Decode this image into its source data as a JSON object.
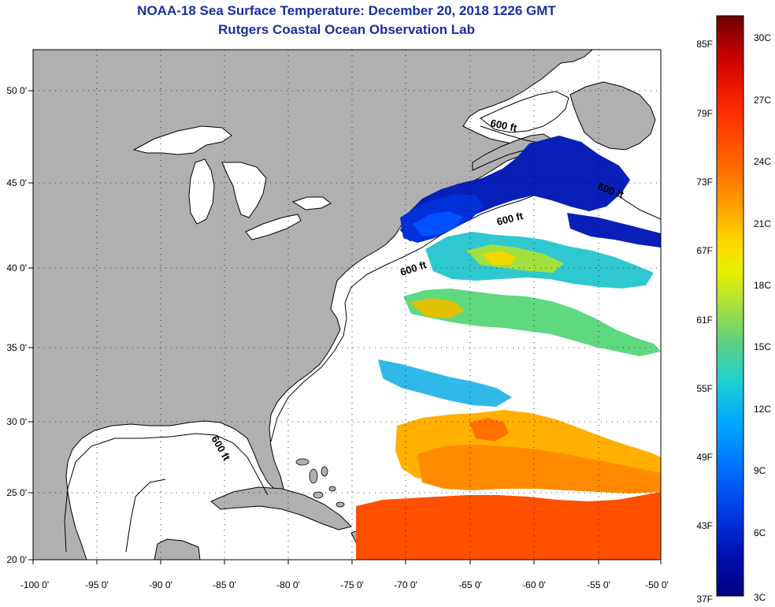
{
  "header": {
    "title": "NOAA-18 Sea Surface Temperature:  December 20, 2018 1226 GMT",
    "subtitle": "Rutgers Coastal Ocean Observation Lab"
  },
  "map": {
    "lon_range": [
      -100,
      -50
    ],
    "lat_range": [
      20,
      52
    ],
    "lon_ticks": [
      "-100 0'",
      "-95 0'",
      "-90 0'",
      "-85 0'",
      "-80 0'",
      "-75 0'",
      "-70 0'",
      "-65 0'",
      "-60 0'",
      "-55 0'",
      "-50 0'"
    ],
    "lat_ticks": [
      "50 0'",
      "45 0'",
      "40 0'",
      "35 0'",
      "30 0'",
      "25 0'",
      "20 0'"
    ],
    "land_color": "#b0b0b0",
    "no_data_color": "#ffffff",
    "isobath_labels": [
      "600 ft",
      "600 ft",
      "600 ft",
      "600 ft",
      "600 ft"
    ]
  },
  "colorbar": {
    "fahrenheit_labels": [
      "85F",
      "79F",
      "73F",
      "67F",
      "61F",
      "55F",
      "49F",
      "43F",
      "37F"
    ],
    "celsius_labels": [
      "30C",
      "27C",
      "24C",
      "21C",
      "18C",
      "15C",
      "12C",
      "9C",
      "6C",
      "3C"
    ],
    "colors": [
      "#6e0000",
      "#c80000",
      "#ff2a00",
      "#ff6a00",
      "#ffa000",
      "#ffd800",
      "#e8f000",
      "#a8e040",
      "#60d080",
      "#20d0d0",
      "#00a8ff",
      "#0070ff",
      "#0038e0",
      "#0010b0",
      "#000080"
    ]
  }
}
